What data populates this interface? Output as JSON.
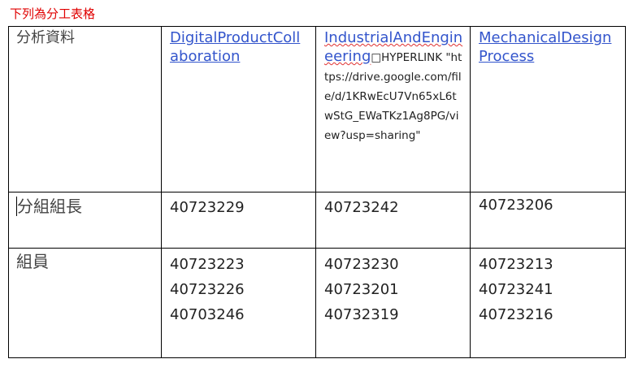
{
  "title": "下列為分工表格",
  "table": {
    "rows": [
      {
        "label": "分析資料",
        "cells": [
          {
            "link": "DigitalProductCollaboration"
          },
          {
            "link": "IndustrialAndEngineering",
            "extra": "HYPERLINK \"https://drive.google.com/file/d/1KRwEcU7Vn65xL6twStG_EWaTKz1Ag8PG/view?usp=sharing\""
          },
          {
            "link": "MechanicalDesignProcess"
          }
        ]
      },
      {
        "label": "分組組長",
        "cells": [
          [
            "40723229"
          ],
          [
            "40723242"
          ],
          [
            "40723206"
          ]
        ]
      },
      {
        "label": "組員",
        "cells": [
          [
            "40723223",
            "40723226",
            "40703246"
          ],
          [
            "40723230",
            "40723201",
            "40732319"
          ],
          [
            "40723213",
            "40723241",
            "40723216"
          ]
        ]
      }
    ]
  }
}
